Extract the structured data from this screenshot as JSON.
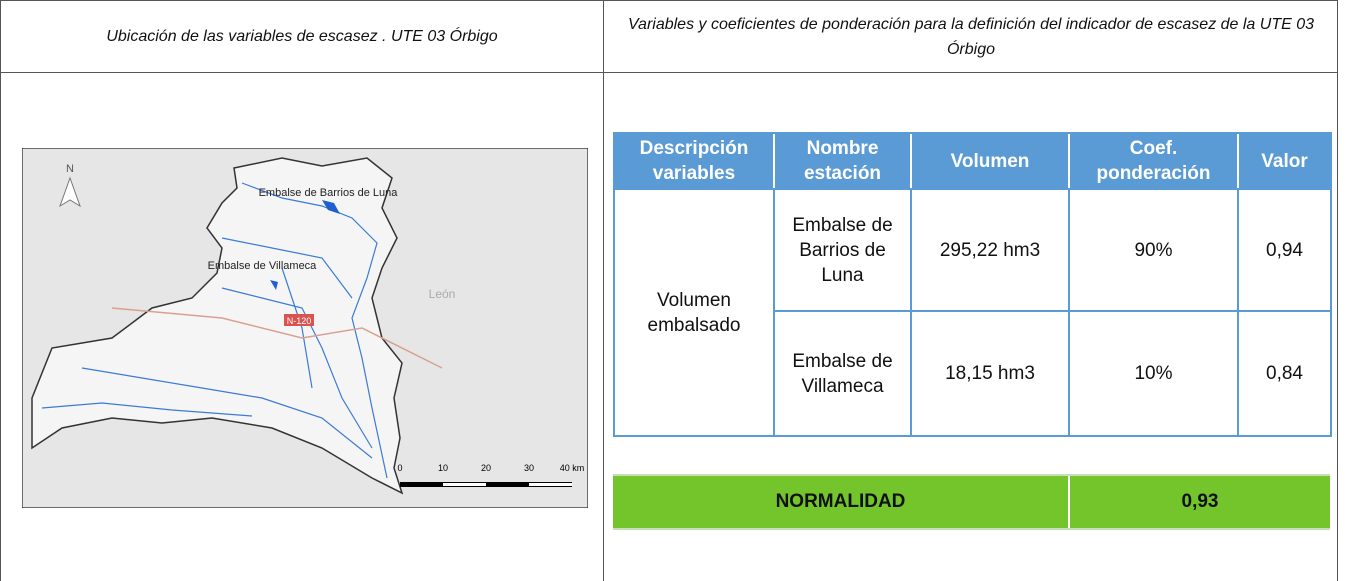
{
  "left_header": "Ubicación de las variables de escasez . UTE 03 Órbigo",
  "right_header": "Variables y  coeficientes de ponderación para la definición del indicador de escasez de la UTE 03 Órbigo",
  "map": {
    "north": "N",
    "labels": [
      "Embalse de Barrios de Luna",
      "Embalse de Villameca",
      "León",
      "N-120"
    ],
    "scale": [
      "0",
      "10",
      "20",
      "30",
      "40 km"
    ]
  },
  "table": {
    "headers": [
      "Descripción variables",
      "Nombre estación",
      "Volumen",
      "Coef. ponderación",
      "Valor"
    ],
    "rows": [
      [
        "Volumen embalsado",
        "Embalse de Barrios de Luna",
        "295,22 hm3",
        "90%",
        "0,94"
      ],
      [
        "Embalse de Villameca",
        "18,15 hm3",
        "10%",
        "0,84"
      ]
    ]
  },
  "summary": {
    "label": "NORMALIDAD",
    "value": "0,93"
  }
}
